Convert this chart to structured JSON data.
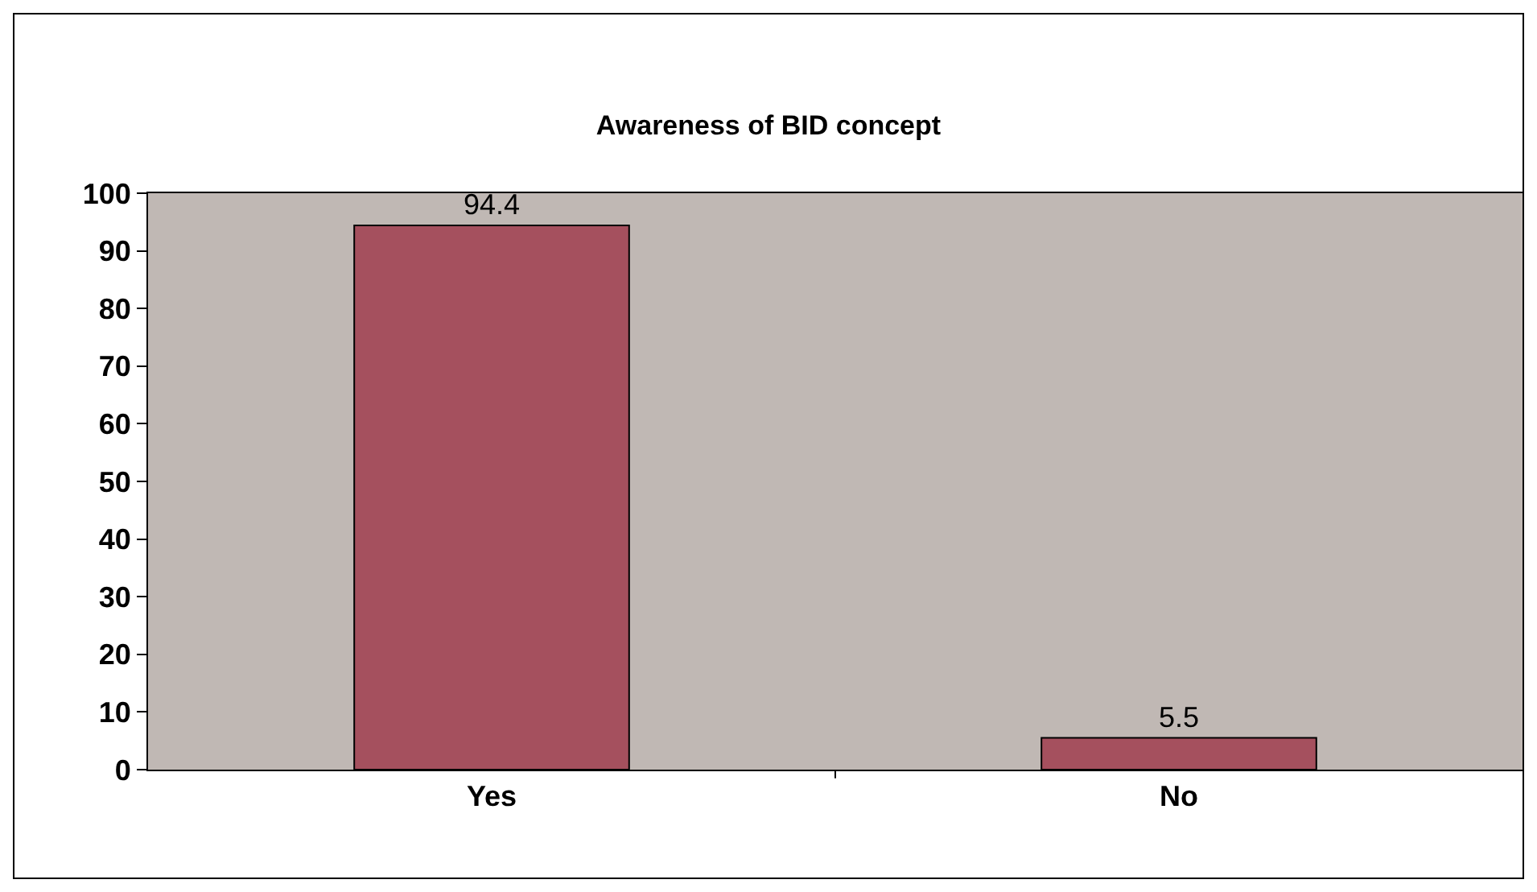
{
  "chart_data": {
    "type": "bar",
    "title": "Awareness of BID concept",
    "categories": [
      "Yes",
      "No"
    ],
    "values": [
      94.4,
      5.5
    ],
    "color": "#a5505e",
    "ylim": [
      0,
      100
    ],
    "yticks": [
      0,
      10,
      20,
      30,
      40,
      50,
      60,
      70,
      80,
      90,
      100
    ],
    "grid": false,
    "data_labels": true,
    "legend": false
  }
}
